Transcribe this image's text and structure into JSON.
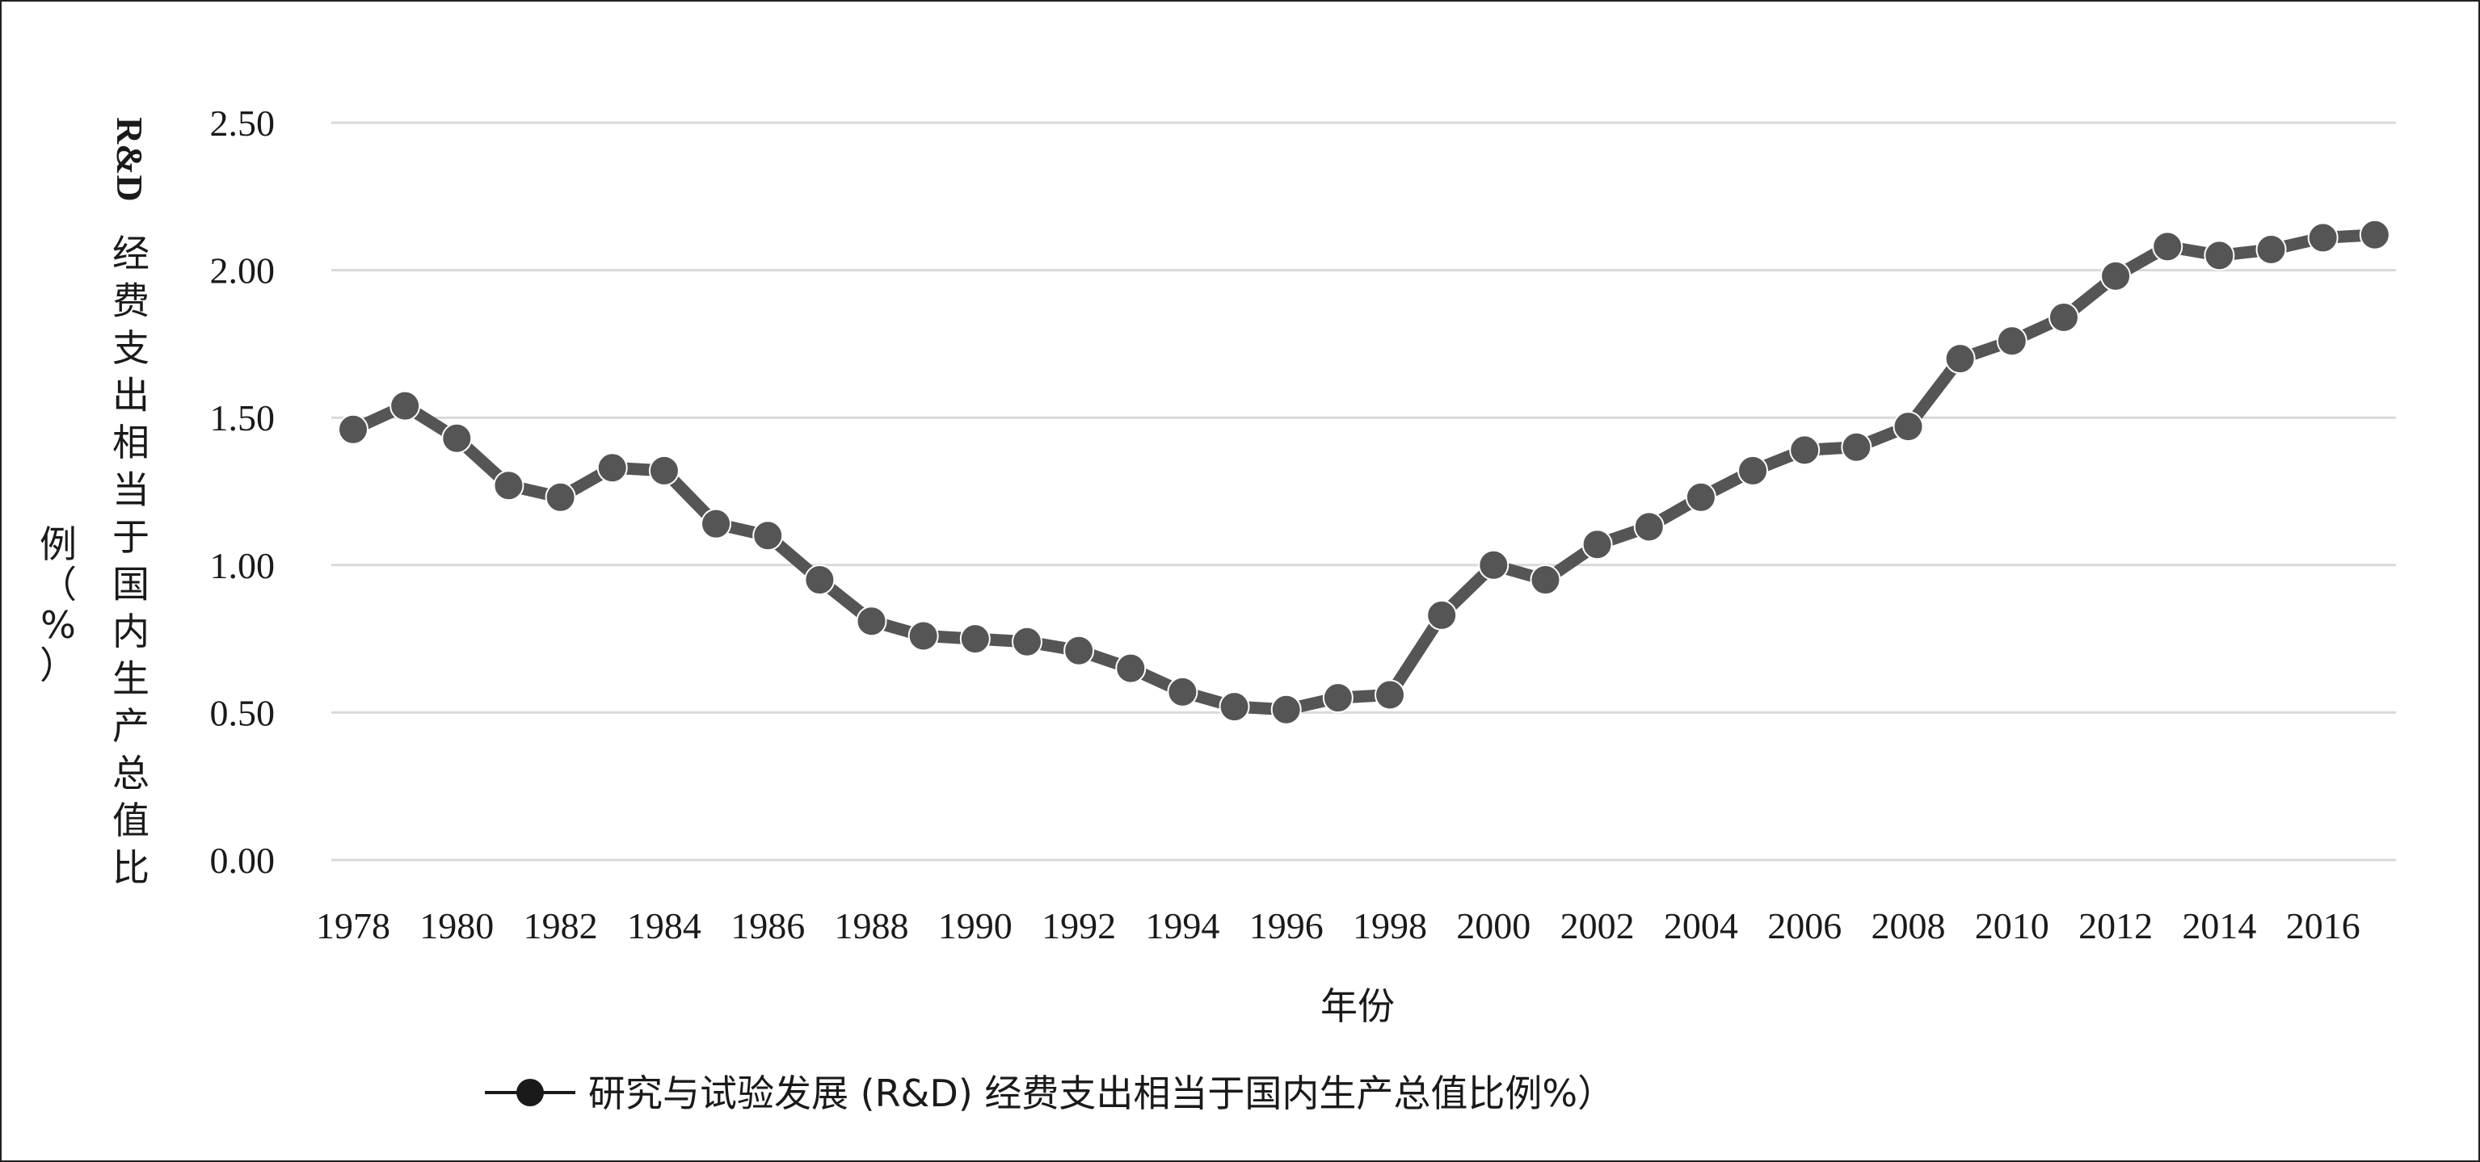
{
  "colors": {
    "series": "#555555",
    "grid": "#d9d9d9",
    "text": "#1a1a1a",
    "frame": "#222222"
  },
  "chart_data": {
    "type": "line",
    "xlabel": "年份",
    "ylabel_lines": [
      "R&D",
      "经",
      "费",
      "支",
      "出",
      "相",
      "当",
      "于",
      "国",
      "内",
      "生",
      "产",
      "总",
      "值",
      "比",
      "例（%）"
    ],
    "ylim": [
      0,
      2.5
    ],
    "yticks": [
      "0.00",
      "0.50",
      "1.00",
      "1.50",
      "2.00",
      "2.50"
    ],
    "xtick_labels": [
      "1978",
      "1980",
      "1982",
      "1984",
      "1986",
      "1988",
      "1990",
      "1992",
      "1994",
      "1996",
      "1998",
      "2000",
      "2002",
      "2004",
      "2006",
      "2008",
      "2010",
      "2012",
      "2014",
      "2016"
    ],
    "grid": "horizontal",
    "legend_position": "bottom",
    "series": [
      {
        "name": "研究与试验发展 (R&D) 经费支出相当于国内生产总值比例%）",
        "marker": "circle",
        "x": [
          1978,
          1979,
          1980,
          1981,
          1982,
          1983,
          1984,
          1985,
          1986,
          1987,
          1988,
          1989,
          1990,
          1991,
          1992,
          1993,
          1994,
          1995,
          1996,
          1997,
          1998,
          1999,
          2000,
          2001,
          2002,
          2003,
          2004,
          2005,
          2006,
          2007,
          2008,
          2009,
          2010,
          2011,
          2012,
          2013,
          2014,
          2015,
          2016,
          2017
        ],
        "values": [
          1.46,
          1.54,
          1.43,
          1.27,
          1.23,
          1.33,
          1.32,
          1.14,
          1.1,
          0.95,
          0.81,
          0.76,
          0.75,
          0.74,
          0.71,
          0.65,
          0.57,
          0.52,
          0.51,
          0.55,
          0.56,
          0.83,
          1.0,
          0.95,
          1.07,
          1.13,
          1.23,
          1.32,
          1.39,
          1.4,
          1.47,
          1.7,
          1.76,
          1.84,
          1.98,
          2.08,
          2.05,
          2.07,
          2.11,
          2.12
        ]
      }
    ]
  }
}
